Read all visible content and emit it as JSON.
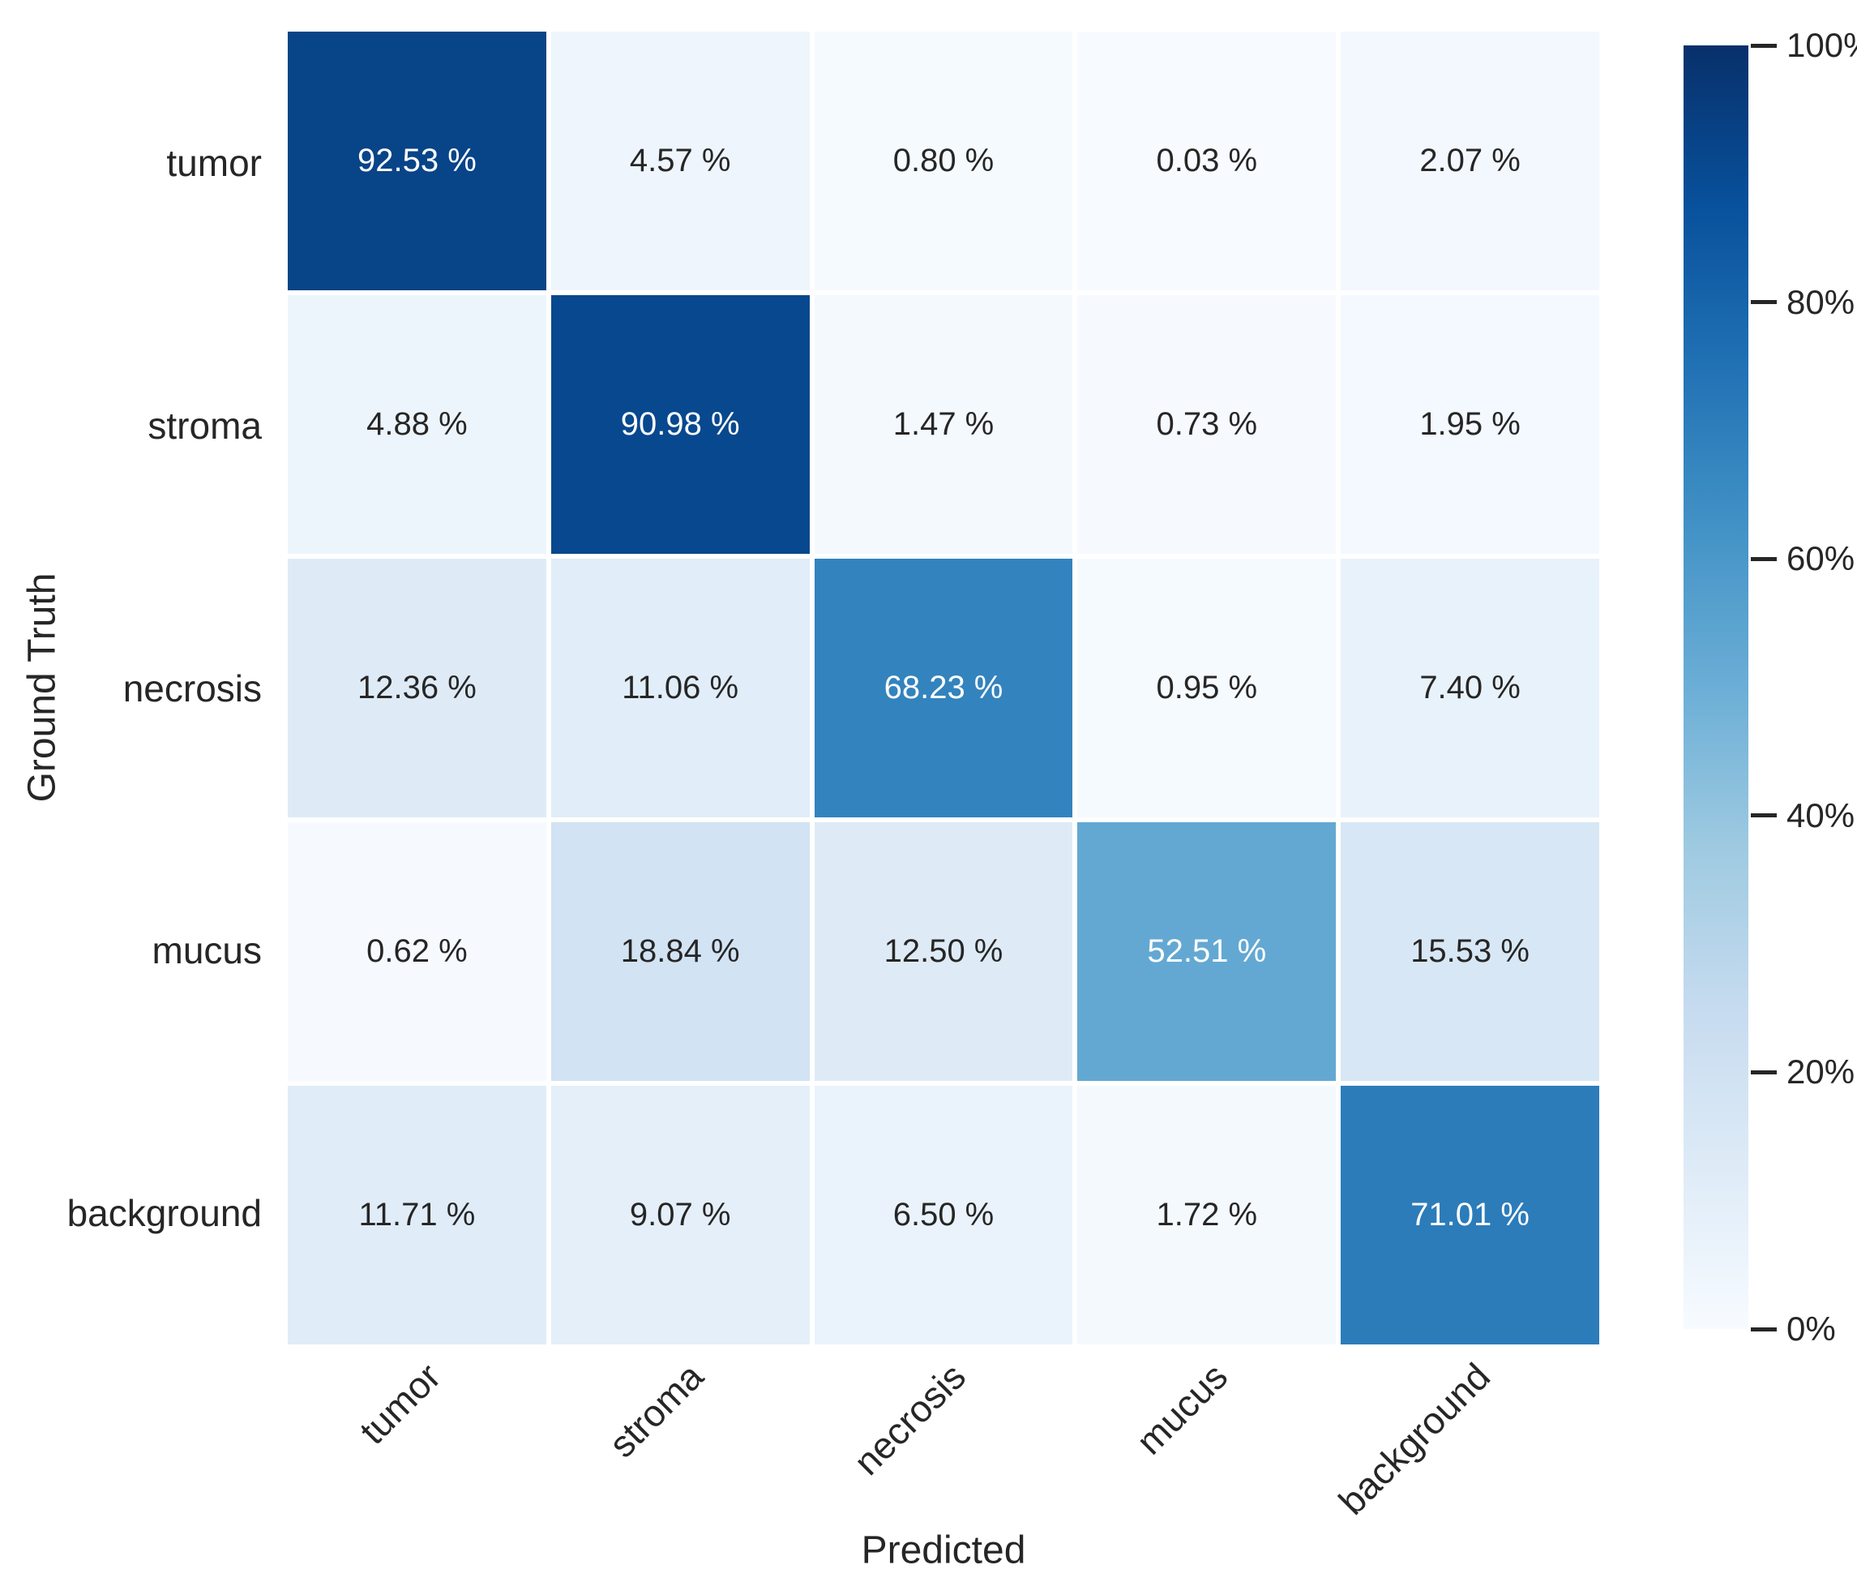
{
  "figure": {
    "background": "#ffffff"
  },
  "chart_data": {
    "type": "heatmap",
    "title": "",
    "xlabel": "Predicted",
    "ylabel": "Ground Truth",
    "categories_x": [
      "tumor",
      "stroma",
      "necrosis",
      "mucus",
      "background"
    ],
    "categories_y": [
      "tumor",
      "stroma",
      "necrosis",
      "mucus",
      "background"
    ],
    "values": [
      [
        92.53,
        4.57,
        0.8,
        0.03,
        2.07
      ],
      [
        4.88,
        90.98,
        1.47,
        0.73,
        1.95
      ],
      [
        12.36,
        11.06,
        68.23,
        0.95,
        7.4
      ],
      [
        0.62,
        18.84,
        12.5,
        52.51,
        15.53
      ],
      [
        11.71,
        9.07,
        6.5,
        1.72,
        71.01
      ]
    ],
    "value_format_decimals": 2,
    "unit_suffix": " %",
    "value_range": [
      0,
      100
    ],
    "grid_gap_color": "#ffffff",
    "annotation_colors": {
      "light": "#ffffff",
      "dark": "#262626"
    },
    "white_text_threshold": 40,
    "colormap": {
      "name": "Blues",
      "stops": [
        [
          0.0,
          "#f7fbff"
        ],
        [
          0.125,
          "#deebf7"
        ],
        [
          0.25,
          "#c6dbef"
        ],
        [
          0.375,
          "#9ecae1"
        ],
        [
          0.5,
          "#6baed6"
        ],
        [
          0.625,
          "#4292c6"
        ],
        [
          0.75,
          "#2171b5"
        ],
        [
          0.875,
          "#08519c"
        ],
        [
          1.0,
          "#08306b"
        ]
      ]
    },
    "colorbar": {
      "tick_values": [
        0,
        20,
        40,
        60,
        80,
        100
      ],
      "tick_labels": [
        "0%",
        "20%",
        "40%",
        "60%",
        "80%",
        "100%"
      ],
      "position": "right"
    },
    "legend": null,
    "grid": false
  }
}
